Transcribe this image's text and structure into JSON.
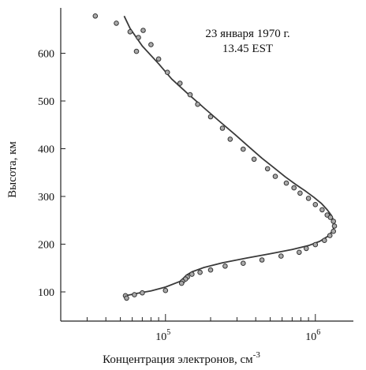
{
  "chart_data": {
    "type": "scatter",
    "xlabel": "Концентрация электронов, см",
    "xlabel_sup": "-3",
    "ylabel": "Высота, км",
    "x_scale": "log",
    "xlim": [
      20000,
      2000000
    ],
    "ylim": [
      45,
      700
    ],
    "x_tick_labels": [
      {
        "value": 100000,
        "base": "10",
        "exp": "5"
      },
      {
        "value": 1000000,
        "base": "10",
        "exp": "6"
      }
    ],
    "y_ticks": [
      100,
      200,
      300,
      400,
      500,
      600
    ],
    "annotations": [
      "23 января 1970 г.",
      "13.45 EST"
    ],
    "grid": false,
    "series": [
      {
        "kind": "points",
        "x": [
          34000,
          47000,
          58000,
          71000,
          66000,
          80000,
          64000,
          90000,
          103000,
          125000,
          146000,
          164000,
          200000,
          240000,
          270000,
          330000,
          390000,
          480000,
          540000,
          640000,
          720000,
          790000,
          900000,
          1000000,
          1110000,
          1200000,
          1260000,
          1320000,
          1340000,
          1320000,
          1250000,
          1150000,
          1000000,
          870000,
          780000,
          590000,
          440000,
          330000,
          250000,
          200000,
          170000,
          150000,
          140000,
          136000,
          130000,
          128000,
          100000,
          70000,
          62000,
          54000,
          55000
        ],
        "y": [
          678,
          663,
          645,
          648,
          633,
          618,
          604,
          588,
          560,
          537,
          513,
          493,
          467,
          443,
          420,
          399,
          378,
          358,
          342,
          328,
          318,
          307,
          296,
          283,
          272,
          261,
          256,
          248,
          238,
          227,
          218,
          208,
          199,
          191,
          183,
          175,
          167,
          160,
          154,
          146,
          141,
          137,
          131,
          127,
          122,
          118,
          103,
          98,
          94,
          92,
          87
        ]
      },
      {
        "kind": "curve",
        "x": [
          53000,
          58000,
          70000,
          90000,
          110000,
          140000,
          180000,
          230000,
          290000,
          360000,
          440000,
          530000,
          630000,
          740000,
          860000,
          980000,
          1100000,
          1200000,
          1280000,
          1320000,
          1340000,
          1310000,
          1220000,
          1070000,
          900000,
          700000,
          500000,
          350000,
          240000,
          180000,
          150000,
          138000,
          132000,
          125000,
          100000,
          80000,
          65000,
          56000,
          53000
        ],
        "y": [
          678,
          652,
          615,
          578,
          546,
          516,
          486,
          457,
          430,
          404,
          380,
          360,
          341,
          325,
          311,
          298,
          285,
          272,
          260,
          250,
          240,
          229,
          217,
          206,
          197,
          189,
          180,
          171,
          161,
          151,
          142,
          135,
          129,
          122,
          110,
          102,
          97,
          93,
          91
        ]
      }
    ]
  }
}
